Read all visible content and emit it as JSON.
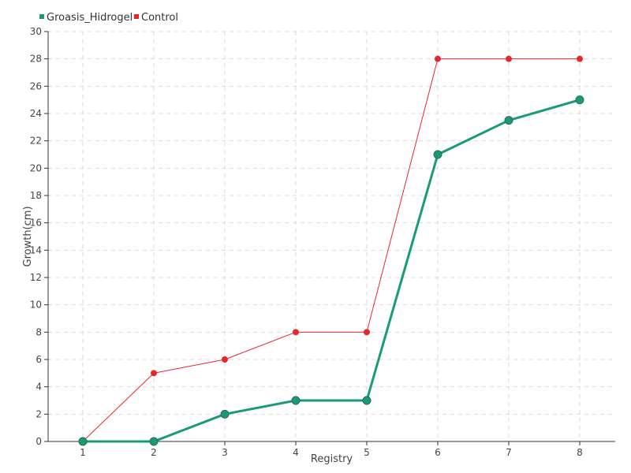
{
  "chart_data": {
    "type": "line",
    "title": "",
    "xlabel": "Registry",
    "ylabel": "Growth(cm)",
    "x": [
      1,
      2,
      3,
      4,
      5,
      6,
      7,
      8
    ],
    "xlim": [
      1,
      8
    ],
    "ylim": [
      0,
      30
    ],
    "ytick_step": 2,
    "grid": true,
    "legend_position": "top-left",
    "series": [
      {
        "name": "Groasis_Hidrogel",
        "color": "#1a9a78",
        "values": [
          0,
          0,
          2,
          3,
          3,
          21,
          23.5,
          25
        ]
      },
      {
        "name": "Control",
        "color": "#e8262d",
        "values": [
          0,
          5,
          6,
          8,
          8,
          28,
          28,
          28
        ]
      }
    ]
  }
}
